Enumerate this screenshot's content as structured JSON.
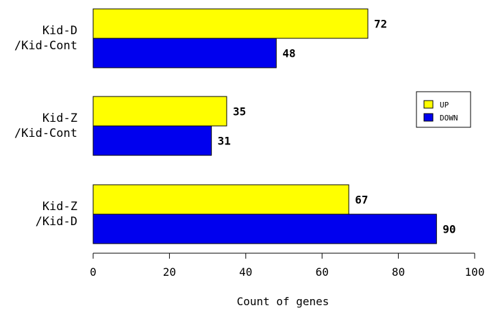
{
  "chart_data": {
    "type": "bar",
    "orientation": "horizontal",
    "categories": [
      [
        "Kid-D",
        "/Kid-Cont"
      ],
      [
        "Kid-Z",
        "/Kid-Cont"
      ],
      [
        "Kid-Z",
        "/Kid-D"
      ]
    ],
    "series": [
      {
        "name": "UP",
        "color": "#ffff00",
        "values": [
          72,
          35,
          67
        ]
      },
      {
        "name": "DOWN",
        "color": "#0000ee",
        "values": [
          48,
          31,
          90
        ]
      }
    ],
    "xlabel": "Count of genes",
    "ylabel": "",
    "xlim": [
      0,
      100
    ],
    "xticks": [
      0,
      20,
      40,
      60,
      80,
      100
    ],
    "legend_position": "right",
    "grid": false
  }
}
